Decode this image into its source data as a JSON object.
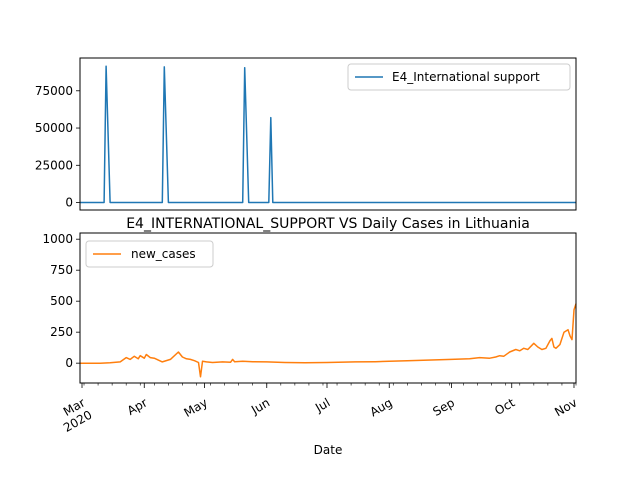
{
  "chart_data": [
    {
      "type": "line",
      "title": "",
      "xlabel": "",
      "ylabel": "",
      "x_range": [
        "2020-02-29",
        "2020-11-02"
      ],
      "ylim": [
        -5000,
        97000
      ],
      "y_ticks": [
        0,
        25000,
        50000,
        75000
      ],
      "y_tick_labels": [
        "0",
        "25000",
        "50000",
        "75000"
      ],
      "legend": {
        "position": "top-right",
        "entries": [
          "E4_International support"
        ]
      },
      "series": [
        {
          "name": "E4_International support",
          "color": "#1f77b4",
          "x": [
            "2020-02-29",
            "2020-03-12",
            "2020-03-13",
            "2020-03-15",
            "2020-04-10",
            "2020-04-11",
            "2020-04-13",
            "2020-05-20",
            "2020-05-21",
            "2020-05-23",
            "2020-06-02",
            "2020-06-03",
            "2020-06-04",
            "2020-11-02"
          ],
          "values": [
            0,
            0,
            91500,
            0,
            0,
            91000,
            0,
            0,
            90500,
            0,
            0,
            57000,
            0,
            0
          ]
        }
      ]
    },
    {
      "type": "line",
      "title": "E4_INTERNATIONAL_SUPPORT VS Daily Cases in Lithuania",
      "xlabel": "Date",
      "ylabel": "",
      "x_range": [
        "2020-02-29",
        "2020-11-02"
      ],
      "ylim": [
        -160,
        1050
      ],
      "y_ticks": [
        0,
        250,
        500,
        750,
        1000
      ],
      "y_tick_labels": [
        "0",
        "250",
        "500",
        "750",
        "1000"
      ],
      "x_ticks": [
        "2020-03-01",
        "2020-04-01",
        "2020-05-01",
        "2020-06-01",
        "2020-07-01",
        "2020-08-01",
        "2020-09-01",
        "2020-10-01",
        "2020-11-01"
      ],
      "x_tick_labels": [
        "Mar\n2020",
        "Apr",
        "May",
        "Jun",
        "Jul",
        "Aug",
        "Sep",
        "Oct",
        "Nov"
      ],
      "legend": {
        "position": "top-left",
        "entries": [
          "new_cases"
        ]
      },
      "series": [
        {
          "name": "new_cases",
          "color": "#ff7f0e",
          "x": [
            "2020-02-29",
            "2020-03-10",
            "2020-03-15",
            "2020-03-20",
            "2020-03-23",
            "2020-03-25",
            "2020-03-27",
            "2020-03-29",
            "2020-03-30",
            "2020-04-01",
            "2020-04-02",
            "2020-04-04",
            "2020-04-06",
            "2020-04-08",
            "2020-04-10",
            "2020-04-14",
            "2020-04-18",
            "2020-04-20",
            "2020-04-22",
            "2020-04-24",
            "2020-04-26",
            "2020-04-28",
            "2020-04-29",
            "2020-04-30",
            "2020-05-02",
            "2020-05-05",
            "2020-05-10",
            "2020-05-14",
            "2020-05-15",
            "2020-05-16",
            "2020-05-20",
            "2020-05-25",
            "2020-06-01",
            "2020-06-10",
            "2020-06-20",
            "2020-07-01",
            "2020-07-15",
            "2020-07-25",
            "2020-08-01",
            "2020-08-10",
            "2020-08-20",
            "2020-09-01",
            "2020-09-10",
            "2020-09-15",
            "2020-09-20",
            "2020-09-23",
            "2020-09-25",
            "2020-09-27",
            "2020-09-30",
            "2020-10-03",
            "2020-10-05",
            "2020-10-07",
            "2020-10-09",
            "2020-10-12",
            "2020-10-14",
            "2020-10-16",
            "2020-10-18",
            "2020-10-20",
            "2020-10-21",
            "2020-10-22",
            "2020-10-23",
            "2020-10-25",
            "2020-10-27",
            "2020-10-29",
            "2020-10-30",
            "2020-10-31",
            "2020-11-01",
            "2020-11-02"
          ],
          "values": [
            0,
            0,
            3,
            10,
            45,
            30,
            55,
            35,
            60,
            40,
            70,
            45,
            40,
            25,
            10,
            30,
            90,
            50,
            35,
            30,
            20,
            5,
            -110,
            15,
            10,
            5,
            10,
            8,
            30,
            12,
            15,
            12,
            10,
            5,
            3,
            5,
            10,
            12,
            15,
            20,
            25,
            30,
            35,
            45,
            40,
            50,
            60,
            55,
            90,
            110,
            100,
            120,
            110,
            160,
            130,
            110,
            120,
            180,
            200,
            130,
            120,
            150,
            250,
            270,
            220,
            190,
            430,
            480
          ]
        }
      ]
    }
  ]
}
